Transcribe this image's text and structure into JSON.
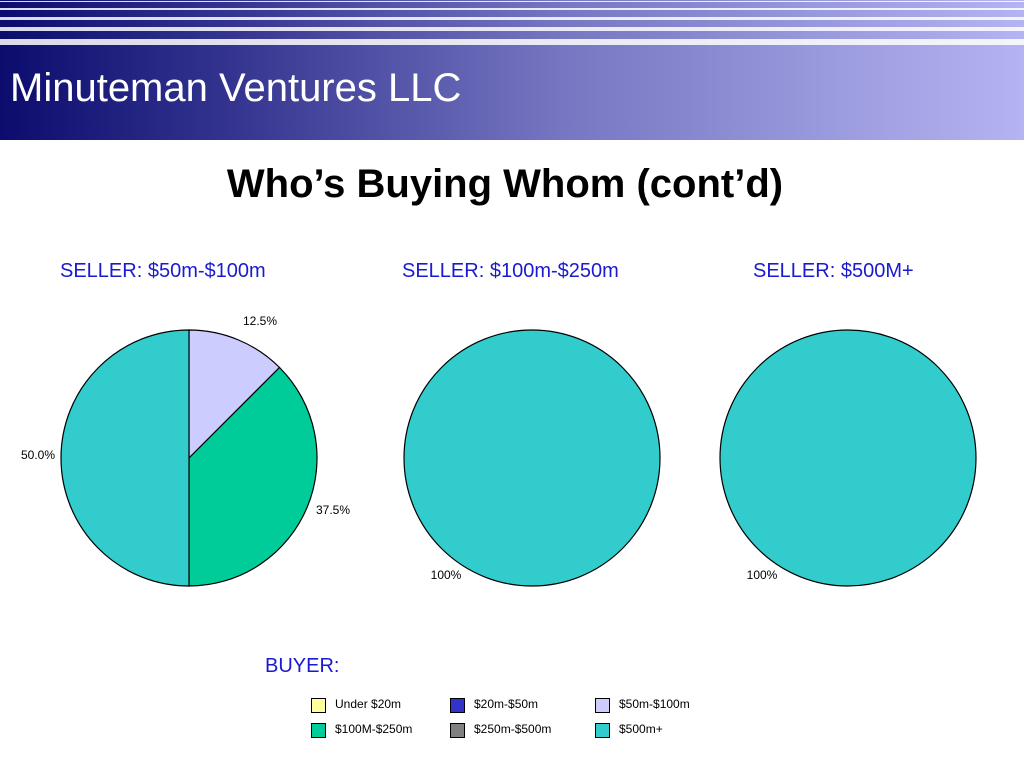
{
  "header": {
    "company": "Minuteman Ventures LLC"
  },
  "slide": {
    "title": "Who’s Buying Whom (cont’d)"
  },
  "colors": {
    "title_blue": "#1a1ad0",
    "under_20m": "#ffffa0",
    "20m_50m": "#3333cc",
    "50m_100m": "#ccccff",
    "100m_250m": "#00cc99",
    "250m_500m": "#808080",
    "500m_plus": "#33cccc"
  },
  "chart_data": [
    {
      "type": "pie",
      "title": "SELLER: $50m-$100m",
      "slices": [
        {
          "category": "$50m-$100m",
          "value": 12.5,
          "label": "12.5%",
          "color": "#ccccff"
        },
        {
          "category": "$100M-$250m",
          "value": 37.5,
          "label": "37.5%",
          "color": "#00cc99"
        },
        {
          "category": "$500m+",
          "value": 50.0,
          "label": "50.0%",
          "color": "#33cccc"
        }
      ]
    },
    {
      "type": "pie",
      "title": "SELLER: $100m-$250m",
      "slices": [
        {
          "category": "$500m+",
          "value": 100,
          "label": "100%",
          "color": "#33cccc"
        }
      ]
    },
    {
      "type": "pie",
      "title": "SELLER: $500M+",
      "slices": [
        {
          "category": "$500m+",
          "value": 100,
          "label": "100%",
          "color": "#33cccc"
        }
      ]
    }
  ],
  "legend": {
    "title": "BUYER:",
    "items": [
      {
        "label": "Under $20m",
        "color": "#ffffa0"
      },
      {
        "label": "$20m-$50m",
        "color": "#3333cc"
      },
      {
        "label": "$50m-$100m",
        "color": "#ccccff"
      },
      {
        "label": "$100M-$250m",
        "color": "#00cc99"
      },
      {
        "label": "$250m-$500m",
        "color": "#808080"
      },
      {
        "label": "$500m+",
        "color": "#33cccc"
      }
    ]
  }
}
